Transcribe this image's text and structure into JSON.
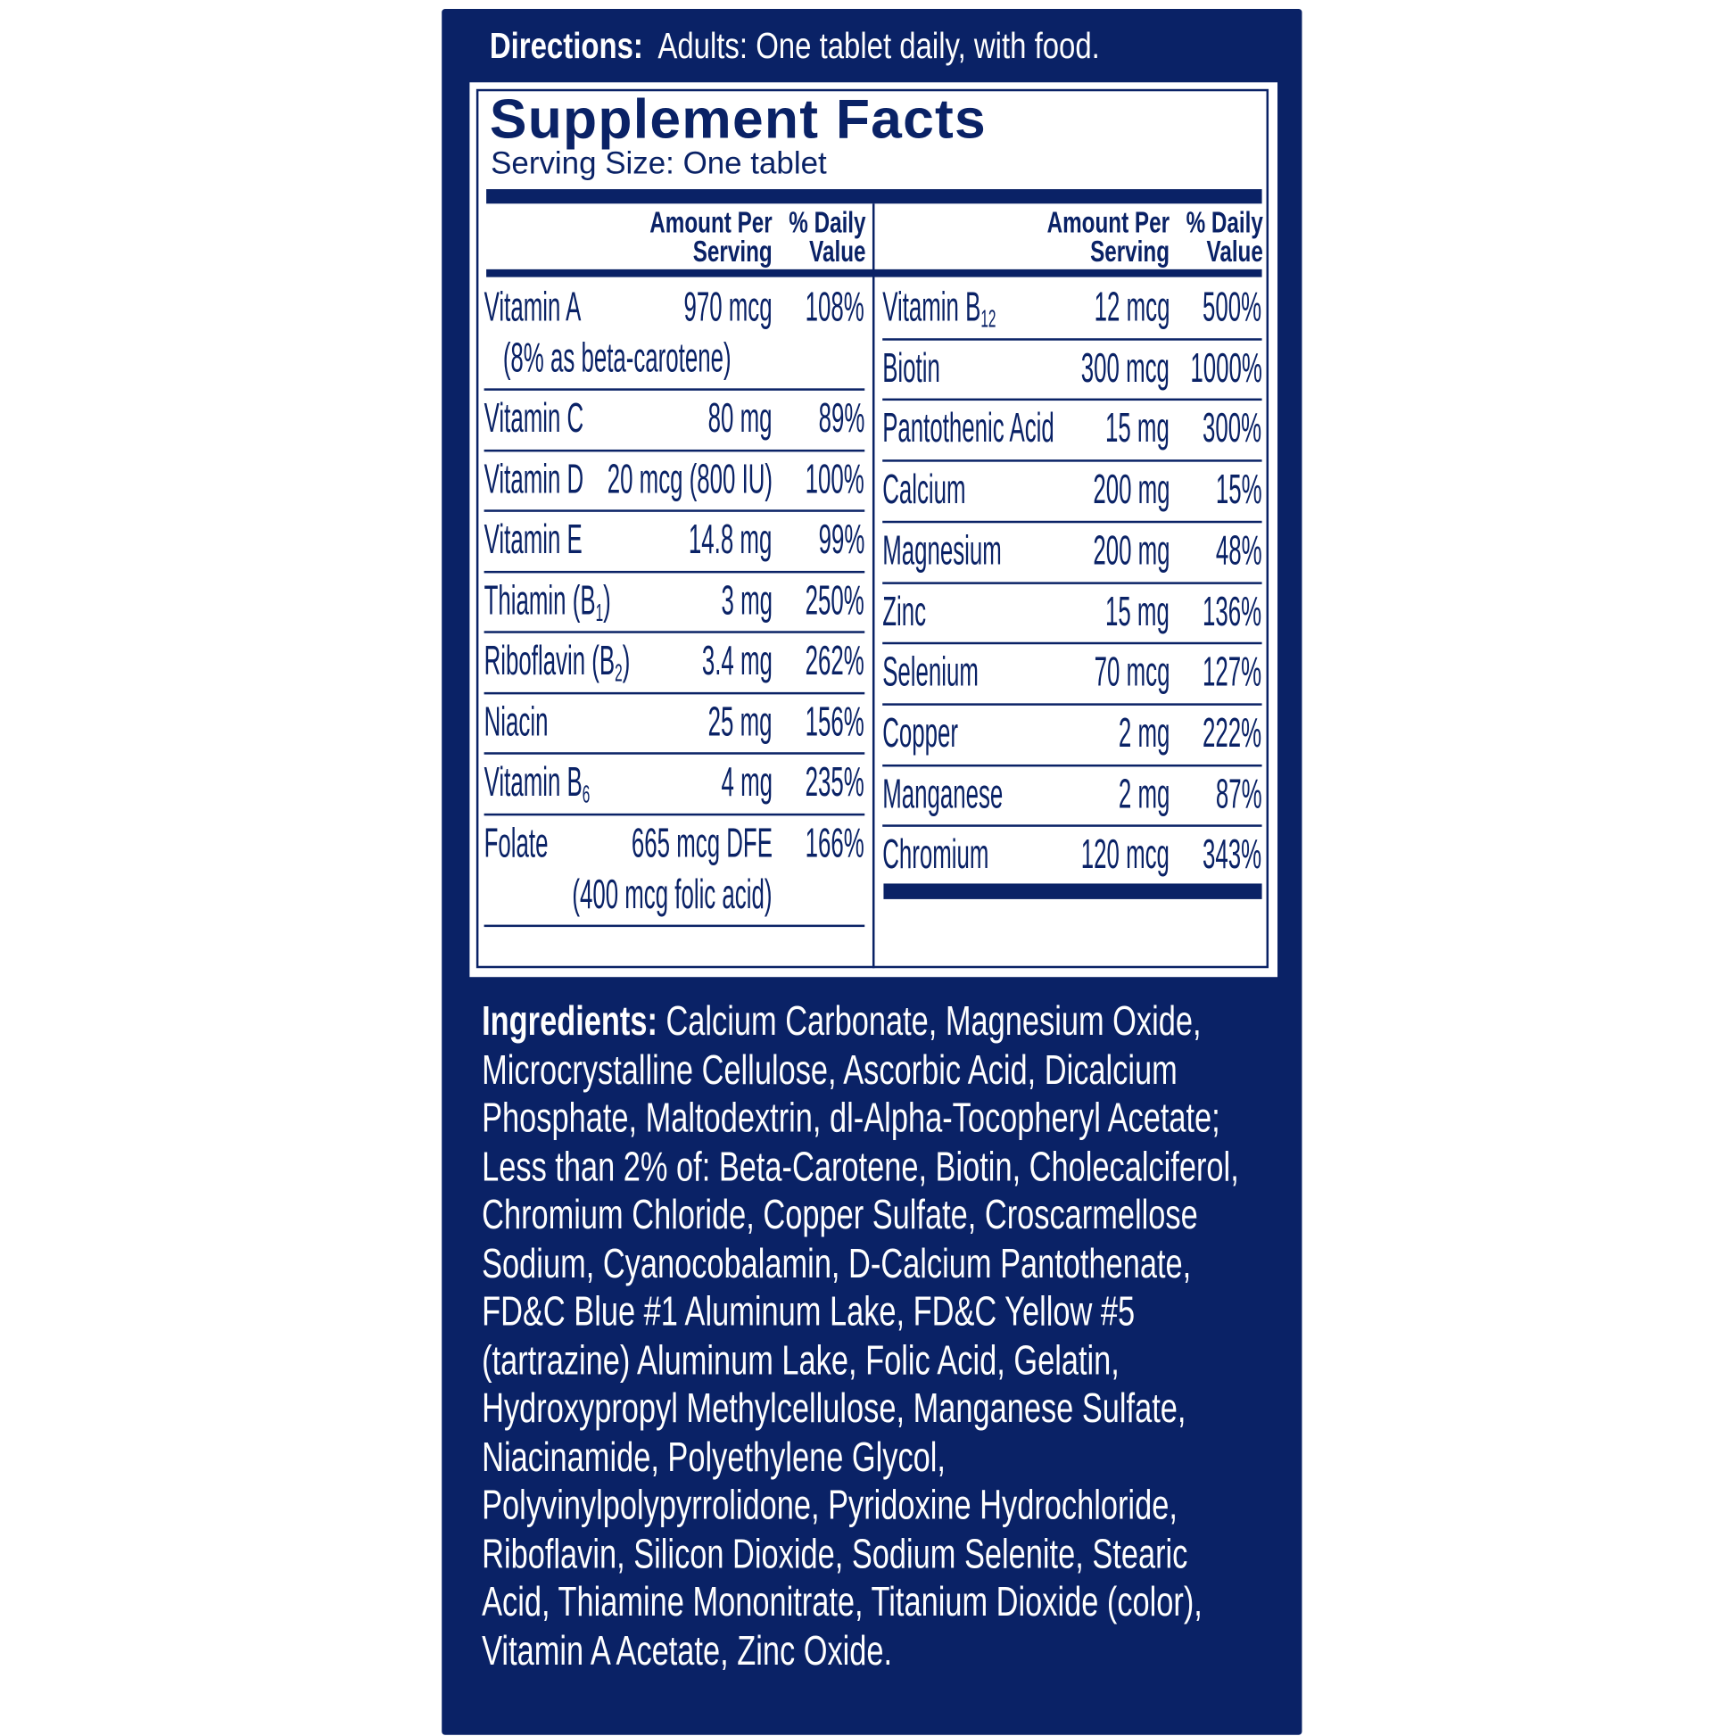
{
  "directions": {
    "label": "Directions:",
    "text": "Adults:  One tablet daily, with food."
  },
  "facts": {
    "title": "Supplement Facts",
    "serving_size": "Serving Size: One tablet",
    "header_amount": [
      "Amount Per",
      "Serving"
    ],
    "header_dv": [
      "% Daily",
      "Value"
    ],
    "left": [
      {
        "name": "Vitamin A",
        "amount": "970 mcg",
        "dv": "108%",
        "note": "(8% as beta-carotene)"
      },
      {
        "name": "Vitamin C",
        "amount": "80 mg",
        "dv": "89%"
      },
      {
        "name": "Vitamin D",
        "amount": "20 mcg (800 IU)",
        "dv": "100%"
      },
      {
        "name": "Vitamin E",
        "amount": "14.8 mg",
        "dv": "99%"
      },
      {
        "name": "Thiamin (B",
        "sub": "1",
        "suffix": ")",
        "amount": "3 mg",
        "dv": "250%"
      },
      {
        "name": "Riboflavin (B",
        "sub": "2",
        "suffix": ")",
        "amount": "3.4 mg",
        "dv": "262%"
      },
      {
        "name": "Niacin",
        "amount": "25 mg",
        "dv": "156%"
      },
      {
        "name": "Vitamin B",
        "sub": "6",
        "amount": "4 mg",
        "dv": "235%"
      },
      {
        "name": "Folate",
        "amount": "665 mcg DFE",
        "dv": "166%",
        "note": "(400 mcg folic acid)"
      }
    ],
    "right": [
      {
        "name": "Vitamin B",
        "sub": "12",
        "amount": "12 mcg",
        "dv": "500%"
      },
      {
        "name": "Biotin",
        "amount": "300 mcg",
        "dv": "1000%"
      },
      {
        "name": "Pantothenic Acid",
        "amount": "15 mg",
        "dv": "300%"
      },
      {
        "name": "Calcium",
        "amount": "200 mg",
        "dv": "15%"
      },
      {
        "name": "Magnesium",
        "amount": "200 mg",
        "dv": "48%"
      },
      {
        "name": "Zinc",
        "amount": "15 mg",
        "dv": "136%"
      },
      {
        "name": "Selenium",
        "amount": "70 mcg",
        "dv": "127%"
      },
      {
        "name": "Copper",
        "amount": "2 mg",
        "dv": "222%"
      },
      {
        "name": "Manganese",
        "amount": "2 mg",
        "dv": "87%"
      },
      {
        "name": "Chromium",
        "amount": "120 mcg",
        "dv": "343%"
      }
    ]
  },
  "ingredients": {
    "label": "Ingredients:",
    "text": "Calcium Carbonate, Magnesium Oxide, Microcrystalline Cellulose, Ascorbic Acid, Dicalcium Phosphate, Maltodextrin, dl-Alpha-Tocopheryl Acetate; Less than 2% of: Beta-Carotene, Biotin, Cholecalciferol, Chromium Chloride, Copper Sulfate, Croscarmellose Sodium, Cyanocobalamin, D-Calcium Pantothenate, FD&C Blue #1 Aluminum Lake, FD&C Yellow #5 (tartrazine) Aluminum Lake, Folic Acid, Gelatin, Hydroxypropyl Methylcellulose, Manganese Sulfate, Niacinamide, Polyethylene Glycol, Polyvinylpolypyrrolidone, Pyridoxine Hydrochloride, Riboflavin, Silicon Dioxide, Sodium Selenite, Stearic Acid, Thiamine Mononitrate, Titanium Dioxide (color), Vitamin A Acetate, Zinc Oxide."
  },
  "colors": {
    "navy": "#0a2266",
    "white": "#ffffff"
  }
}
